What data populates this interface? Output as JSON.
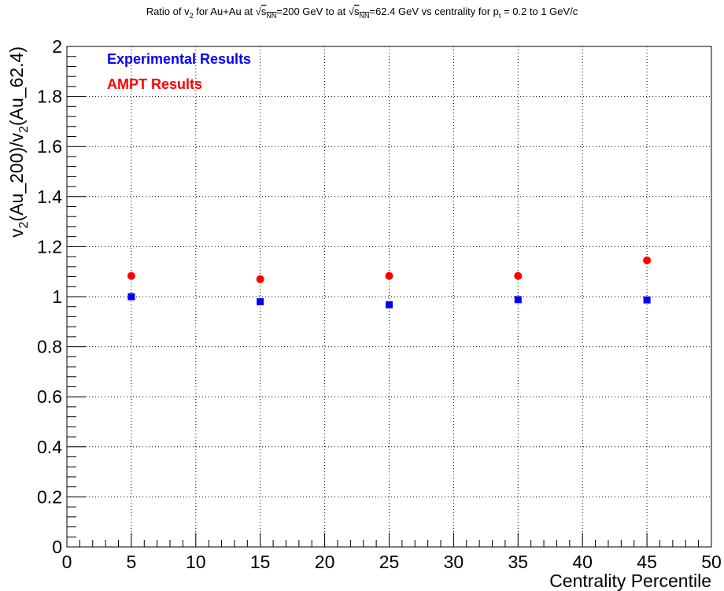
{
  "chart_data": {
    "type": "scatter",
    "title": {
      "prefix": "Ratio of v",
      "v_sub": "2",
      "mid1": " for Au+Au at ",
      "s_text": "s",
      "s_sub": "NN",
      "mid2": "=200 GeV to at ",
      "mid3": "=62.4 GeV vs centrality for p",
      "p_sub": "t",
      "suffix": " = 0.2 to 1 GeV/c"
    },
    "xlabel": "Centrality Percentile",
    "ylabel": {
      "part1": "v",
      "sub1": "2",
      "part2": "(Au_200)/v",
      "sub2": "2",
      "part3": "(Au_62.4)"
    },
    "xlim": [
      0,
      50
    ],
    "ylim": [
      0,
      2
    ],
    "grid": true,
    "legend_position": "top-left",
    "x_ticks": [
      "0",
      "5",
      "10",
      "15",
      "20",
      "25",
      "30",
      "35",
      "40",
      "45",
      "50"
    ],
    "y_ticks": [
      "0",
      "0.2",
      "0.4",
      "0.6",
      "0.8",
      "1",
      "1.2",
      "1.4",
      "1.6",
      "1.8",
      "2"
    ],
    "series": [
      {
        "name": "Experimental Results",
        "color": "#0000ff",
        "marker": "square",
        "x": [
          5,
          15,
          25,
          35,
          45
        ],
        "y": [
          1.0,
          0.98,
          0.968,
          0.988,
          0.987
        ]
      },
      {
        "name": "AMPT Results",
        "color": "#ff0000",
        "marker": "circle",
        "x": [
          5,
          15,
          25,
          35,
          45
        ],
        "y": [
          1.083,
          1.07,
          1.083,
          1.083,
          1.145
        ]
      }
    ]
  }
}
